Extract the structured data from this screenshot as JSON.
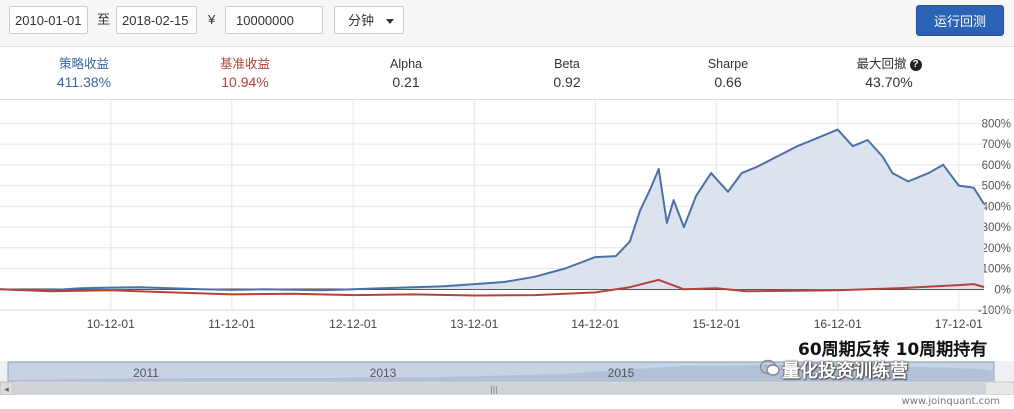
{
  "toolbar": {
    "start_date": "2010-01-01",
    "range_sep": "至",
    "end_date": "2018-02-15",
    "currency_symbol": "¥",
    "capital": "10000000",
    "frequency": "分钟",
    "run_button": "运行回测"
  },
  "stats": [
    {
      "label": "策略收益",
      "value": "411.38%",
      "color": "#3a66a8"
    },
    {
      "label": "基准收益",
      "value": "10.94%",
      "color": "#b2443a"
    },
    {
      "label": "Alpha",
      "value": "0.21",
      "color": "#333333"
    },
    {
      "label": "Beta",
      "value": "0.92",
      "color": "#333333"
    },
    {
      "label": "Sharpe",
      "value": "0.66",
      "color": "#333333"
    },
    {
      "label": "最大回撤",
      "value": "43.70%",
      "color": "#333333"
    }
  ],
  "chart_data": {
    "type": "line",
    "x_ticks": [
      "10-12-01",
      "11-12-01",
      "12-12-01",
      "13-12-01",
      "14-12-01",
      "15-12-01",
      "16-12-01",
      "17-12-01"
    ],
    "y_ticks": [
      "800%",
      "700%",
      "600%",
      "500%",
      "400%",
      "300%",
      "200%",
      "100%",
      "0%",
      "-100%"
    ],
    "ylim": [
      -100,
      850
    ],
    "series": [
      {
        "color": "#4a72a8",
        "fill": "#dde3ee",
        "values": [
          [
            "2010-01-01",
            0
          ],
          [
            "2010-03-01",
            -3
          ],
          [
            "2010-06-01",
            -5
          ],
          [
            "2010-09-01",
            5
          ],
          [
            "2010-12-01",
            8
          ],
          [
            "2011-03-01",
            10
          ],
          [
            "2011-06-01",
            5
          ],
          [
            "2011-09-01",
            0
          ],
          [
            "2011-12-01",
            -3
          ],
          [
            "2012-03-01",
            0
          ],
          [
            "2012-06-01",
            -2
          ],
          [
            "2012-09-01",
            -5
          ],
          [
            "2012-12-01",
            0
          ],
          [
            "2013-03-01",
            5
          ],
          [
            "2013-06-01",
            10
          ],
          [
            "2013-09-01",
            15
          ],
          [
            "2013-12-01",
            25
          ],
          [
            "2014-03-01",
            35
          ],
          [
            "2014-06-01",
            60
          ],
          [
            "2014-09-01",
            100
          ],
          [
            "2014-12-01",
            155
          ],
          [
            "2015-02-01",
            160
          ],
          [
            "2015-03-15",
            230
          ],
          [
            "2015-04-15",
            380
          ],
          [
            "2015-05-15",
            480
          ],
          [
            "2015-06-10",
            580
          ],
          [
            "2015-07-05",
            320
          ],
          [
            "2015-07-25",
            430
          ],
          [
            "2015-08-25",
            300
          ],
          [
            "2015-10-01",
            450
          ],
          [
            "2015-11-15",
            560
          ],
          [
            "2016-01-05",
            470
          ],
          [
            "2016-02-15",
            560
          ],
          [
            "2016-04-01",
            590
          ],
          [
            "2016-06-01",
            640
          ],
          [
            "2016-08-01",
            690
          ],
          [
            "2016-10-01",
            730
          ],
          [
            "2016-12-01",
            770
          ],
          [
            "2017-01-15",
            690
          ],
          [
            "2017-03-01",
            720
          ],
          [
            "2017-04-15",
            640
          ],
          [
            "2017-05-15",
            560
          ],
          [
            "2017-07-01",
            520
          ],
          [
            "2017-09-01",
            560
          ],
          [
            "2017-10-15",
            600
          ],
          [
            "2017-12-01",
            500
          ],
          [
            "2018-01-15",
            490
          ],
          [
            "2018-02-15",
            411
          ]
        ]
      },
      {
        "color": "#b2443a",
        "values": [
          [
            "2010-01-01",
            0
          ],
          [
            "2010-06-01",
            -10
          ],
          [
            "2010-12-01",
            -5
          ],
          [
            "2011-06-01",
            -15
          ],
          [
            "2011-12-01",
            -25
          ],
          [
            "2012-06-01",
            -22
          ],
          [
            "2012-12-01",
            -28
          ],
          [
            "2013-06-01",
            -25
          ],
          [
            "2013-12-01",
            -30
          ],
          [
            "2014-06-01",
            -28
          ],
          [
            "2014-12-01",
            -15
          ],
          [
            "2015-03-15",
            10
          ],
          [
            "2015-06-10",
            45
          ],
          [
            "2015-08-25",
            0
          ],
          [
            "2015-12-01",
            5
          ],
          [
            "2016-03-01",
            -10
          ],
          [
            "2016-12-01",
            -5
          ],
          [
            "2017-06-01",
            5
          ],
          [
            "2017-12-01",
            20
          ],
          [
            "2018-01-15",
            25
          ],
          [
            "2018-02-15",
            11
          ]
        ]
      }
    ]
  },
  "navigator": {
    "years": [
      "2011",
      "2013",
      "2015"
    ],
    "left_arrow": "◂",
    "handle_grip": "|||"
  },
  "watermark": {
    "title": "60周期反转 10周期持有",
    "brand": "量化投资训练营"
  },
  "footer_url": "www.joinquant.com"
}
